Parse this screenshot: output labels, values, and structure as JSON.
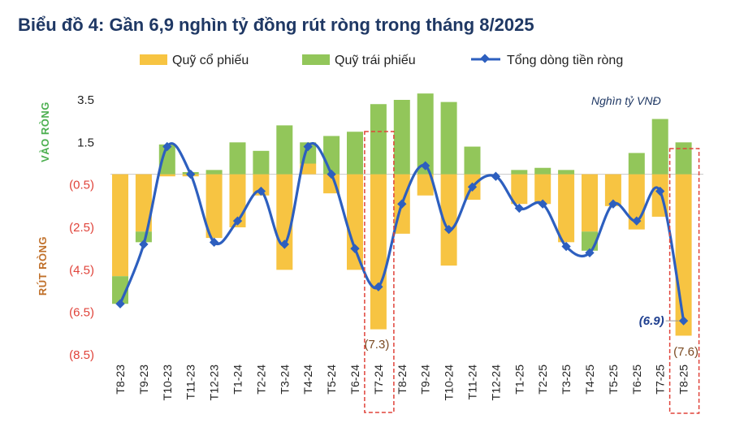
{
  "chart_data": {
    "type": "bar",
    "title": "Biểu đồ 4: Gần 6,9 nghìn tỷ đồng rút ròng trong tháng 8/2025",
    "unit_label": "Nghìn tỷ VNĐ",
    "inflow_label": "VÀO RÒNG",
    "outflow_label": "RÚT RÒNG",
    "categories": [
      "T8-23",
      "T9-23",
      "T10-23",
      "T11-23",
      "T12-23",
      "T1-24",
      "T2-24",
      "T3-24",
      "T4-24",
      "T5-24",
      "T6-24",
      "T7-24",
      "T8-24",
      "T9-24",
      "T10-24",
      "T11-24",
      "T12-24",
      "T1-25",
      "T2-25",
      "T3-25",
      "T4-25",
      "T5-25",
      "T6-25",
      "T7-25",
      "T8-25"
    ],
    "ytick_labels": [
      "3.5",
      "1.5",
      "(0.5)",
      "(2.5)",
      "(4.5)",
      "(6.5)",
      "(8.5)"
    ],
    "ylim": [
      -8.5,
      3.5
    ],
    "series": [
      {
        "name": "Quỹ cổ phiếu",
        "type": "bar",
        "color": "#f7c442",
        "values": [
          -4.8,
          -2.7,
          -0.1,
          -0.1,
          -3.0,
          -2.5,
          -1.0,
          -4.5,
          0.5,
          -0.9,
          -4.5,
          -7.3,
          -2.8,
          -1.0,
          -4.3,
          -1.2,
          0.0,
          -1.4,
          -1.4,
          -3.2,
          -2.7,
          -1.5,
          -2.6,
          -2.0,
          -7.6
        ]
      },
      {
        "name": "Quỹ trái phiếu",
        "type": "bar",
        "color": "#92c65a",
        "values": [
          -1.3,
          -0.5,
          1.4,
          0.1,
          0.2,
          1.5,
          1.1,
          2.3,
          1.0,
          1.8,
          2.0,
          3.3,
          3.5,
          3.8,
          3.4,
          1.3,
          0.0,
          0.2,
          0.3,
          0.2,
          -0.9,
          0.0,
          1.0,
          2.6,
          1.5
        ]
      },
      {
        "name": "Tổng dòng tiền ròng",
        "type": "line",
        "color": "#2d5fbf",
        "values": [
          -6.1,
          -3.3,
          1.3,
          0.0,
          -3.2,
          -2.2,
          -0.8,
          -3.3,
          1.3,
          0.0,
          -3.5,
          -5.3,
          -1.4,
          0.4,
          -2.6,
          -0.6,
          -0.1,
          -1.6,
          -1.4,
          -3.4,
          -3.7,
          -1.4,
          -2.2,
          -0.8,
          -6.9
        ]
      }
    ],
    "annotations": [
      {
        "category": "T7-24",
        "text": "(7.3)",
        "highlight": true
      },
      {
        "category": "T8-25",
        "text": "(7.6)",
        "highlight": true
      },
      {
        "category": "T8-25",
        "text": "(6.9)",
        "series": "Tổng dòng tiền ròng"
      }
    ],
    "legend": "top"
  }
}
